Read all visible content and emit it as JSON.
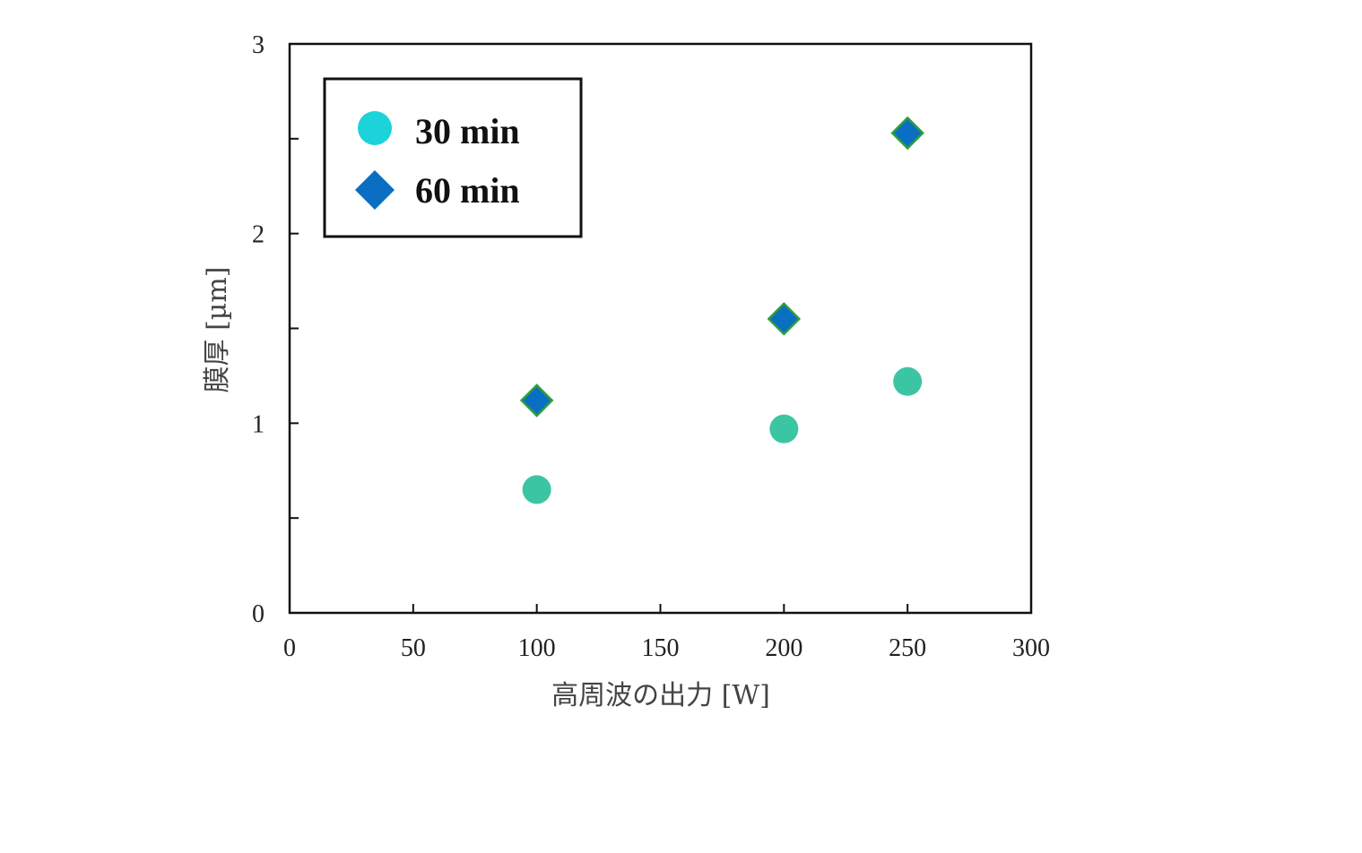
{
  "chart_data": {
    "type": "scatter",
    "xlabel": "高周波の出力 [W]",
    "ylabel": "膜厚 [µm]",
    "xlim": [
      0,
      300
    ],
    "ylim": [
      0,
      3
    ],
    "x_ticks": [
      0,
      50,
      100,
      150,
      200,
      250,
      300
    ],
    "y_ticks": [
      0,
      1,
      2,
      3
    ],
    "y_minor_ticks": [
      0.5,
      1.5,
      2.5
    ],
    "grid": false,
    "legend_position": "top-left",
    "series": [
      {
        "name": "30 min",
        "marker": "circle",
        "color": "#3CC5A3",
        "legend_color": "#1BD3D8",
        "x": [
          100,
          200,
          250
        ],
        "y": [
          0.65,
          0.97,
          1.22
        ]
      },
      {
        "name": "60 min",
        "marker": "diamond",
        "color": "#0A6FC2",
        "stroke": "#2E9E3E",
        "x": [
          100,
          200,
          250
        ],
        "y": [
          1.12,
          1.55,
          2.53
        ]
      }
    ]
  }
}
